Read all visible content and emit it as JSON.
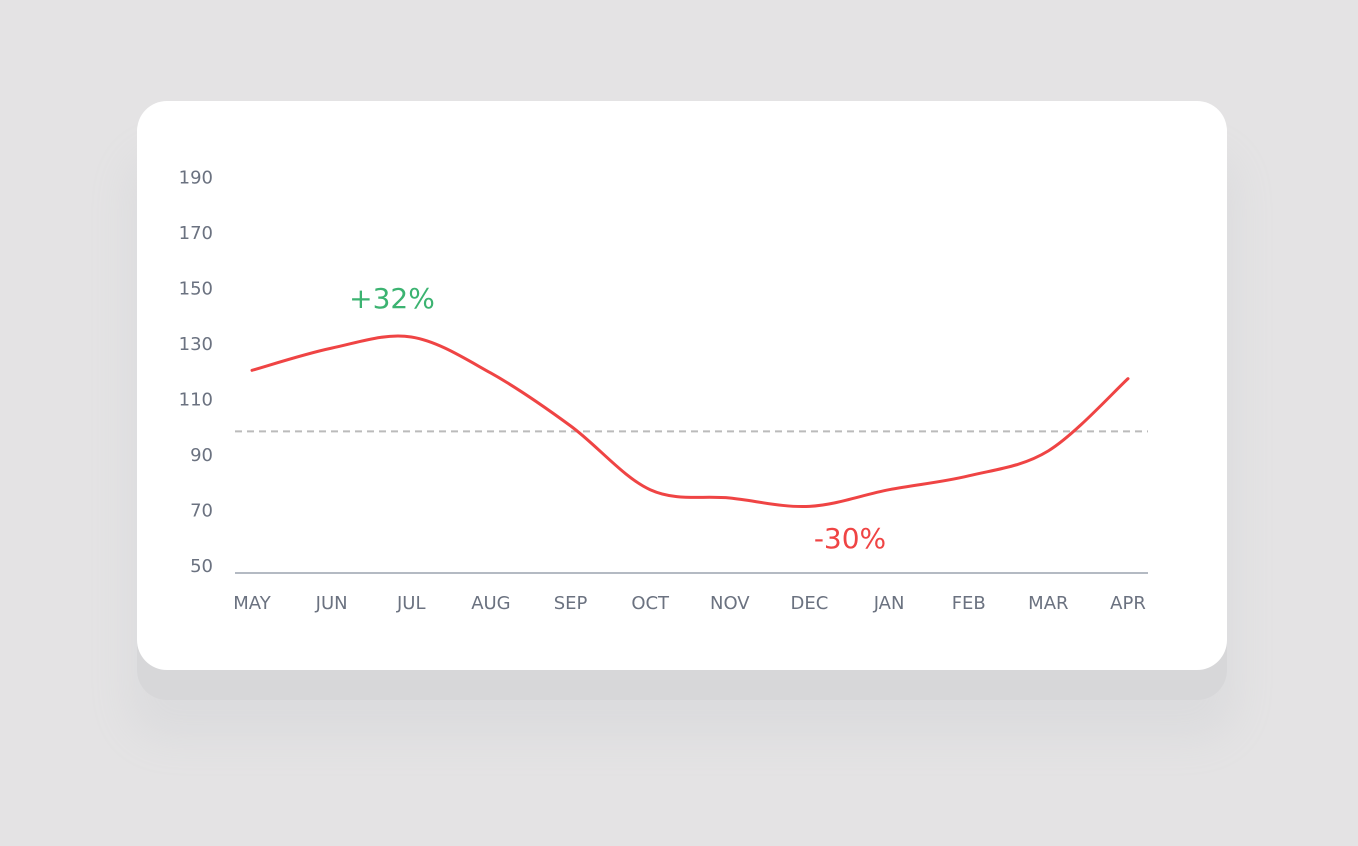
{
  "chart_data": {
    "type": "line",
    "categories": [
      "MAY",
      "JUN",
      "JUL",
      "AUG",
      "SEP",
      "OCT",
      "NOV",
      "DEC",
      "JAN",
      "FEB",
      "MAR",
      "APR"
    ],
    "series": [
      {
        "color": "#ef4444",
        "values": [
          122,
          130,
          134,
          121,
          102,
          79,
          76,
          73,
          79,
          84,
          93,
          119
        ]
      }
    ],
    "ylim": [
      49,
      192
    ],
    "yticks": [
      50,
      70,
      90,
      110,
      130,
      150,
      170,
      190
    ],
    "reference_line": 100,
    "annotations": [
      {
        "text": "+32%",
        "color": "#3cb371"
      },
      {
        "text": "-30%",
        "color": "#ef4444"
      }
    ]
  }
}
